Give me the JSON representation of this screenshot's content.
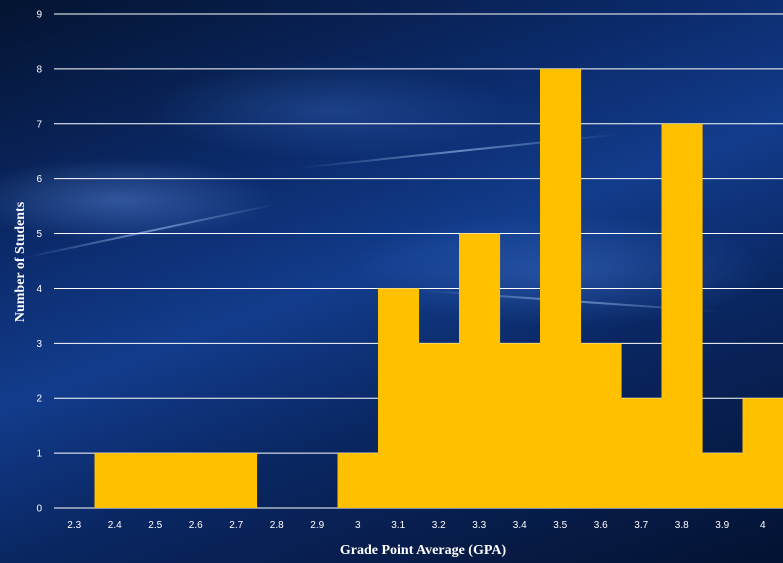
{
  "chart_data": {
    "type": "bar",
    "xlabel": "Grade Point Average (GPA)",
    "ylabel": "Number of Students",
    "categories": [
      "2.3",
      "2.4",
      "2.5",
      "2.6",
      "2.7",
      "2.8",
      "2.9",
      "3",
      "3.1",
      "3.2",
      "3.3",
      "3.4",
      "3.5",
      "3.6",
      "3.7",
      "3.8",
      "3.9",
      "4"
    ],
    "values": [
      0,
      1,
      1,
      1,
      1,
      0,
      0,
      1,
      4,
      3,
      5,
      3,
      8,
      3,
      2,
      7,
      1,
      2
    ],
    "ylim": [
      0,
      9
    ],
    "yticks": [
      "0",
      "1",
      "2",
      "3",
      "4",
      "5",
      "6",
      "7",
      "8",
      "9"
    ],
    "grid": true,
    "bar_color": "#FFC000",
    "grid_color": "#FFFFFF"
  }
}
